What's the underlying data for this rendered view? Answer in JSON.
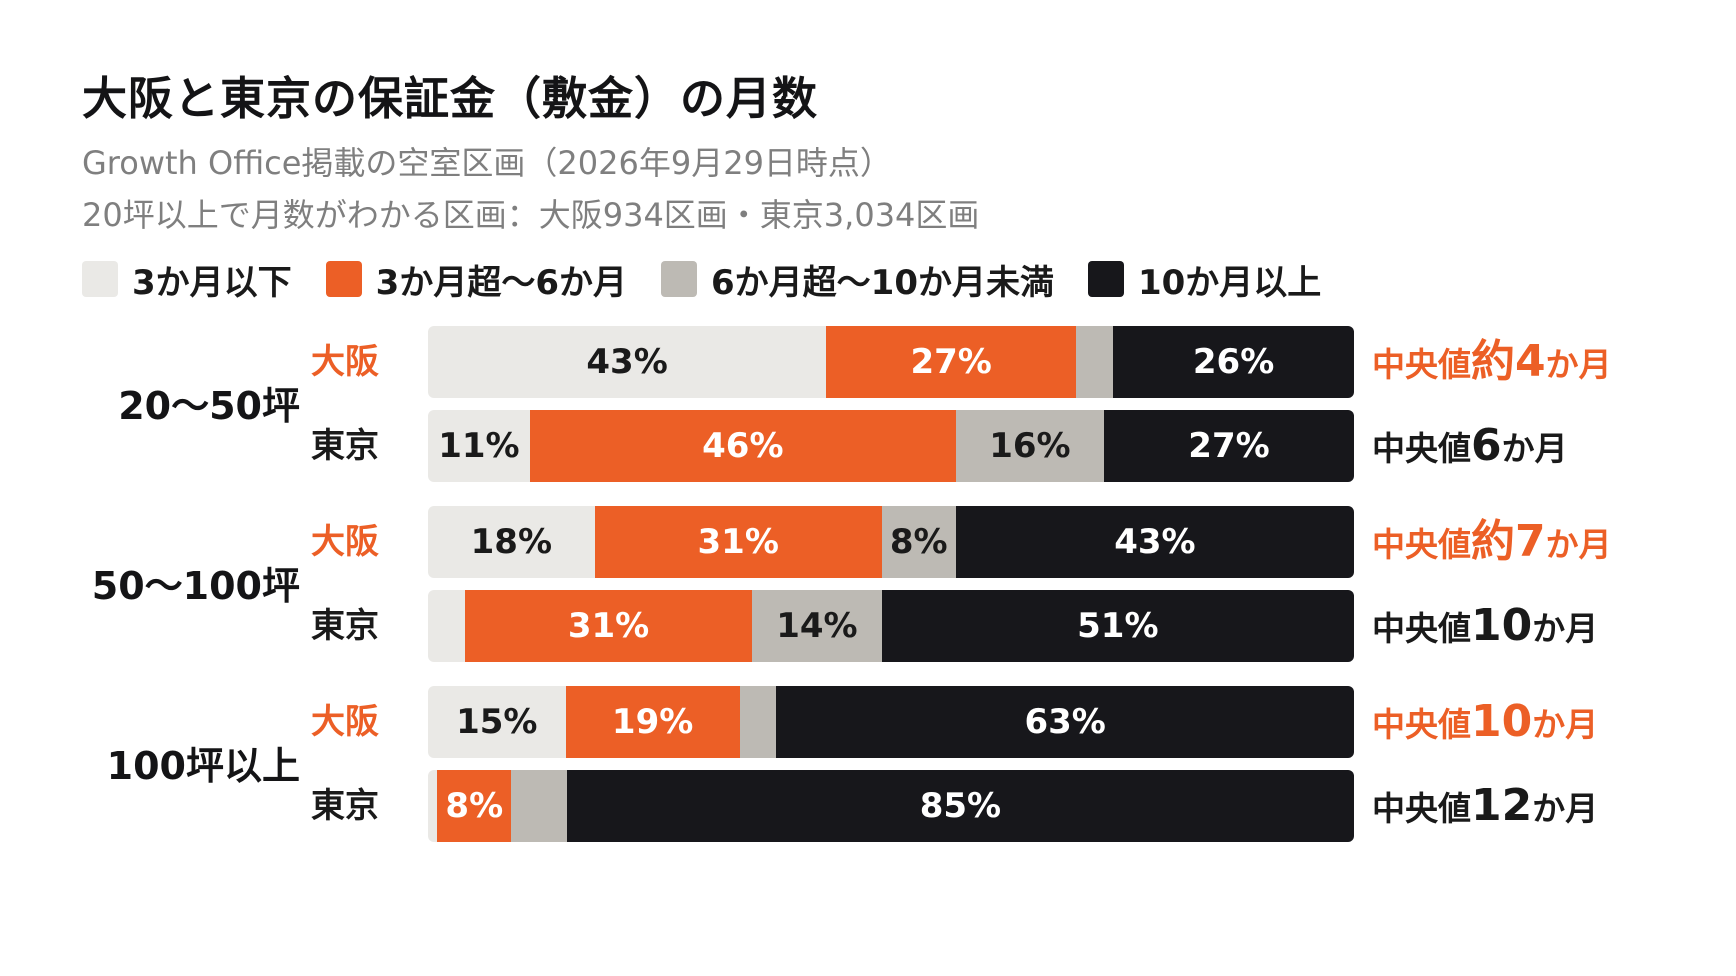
{
  "title": "大阪と東京の保証金（敷金）の月数",
  "subtitle_1": "Growth Office掲載の空室区画（2026年9月29日時点）",
  "subtitle_2": "20坪以上で月数がわかる区画：大阪934区画・東京3,034区画",
  "colors": {
    "le3": "#eae9e6",
    "3to6": "#ec5f26",
    "6to10": "#bdbab4",
    "ge10": "#17171b",
    "osaka_accent": "#ec5f26",
    "tokyo_text": "#1a1a1a"
  },
  "chart_data": {
    "type": "bar",
    "orientation": "horizontal",
    "stacked": true,
    "legend": "top-left",
    "categories_legend": [
      "3か月以下",
      "3か月超〜6か月",
      "6か月超〜10か月未満",
      "10か月以上"
    ],
    "groups": [
      {
        "label": "20〜50坪",
        "rows": [
          {
            "city": "大阪",
            "values": [
              43,
              27,
              4,
              26
            ],
            "labels": [
              "43%",
              "27%",
              "",
              "26%"
            ],
            "median_prefix": "中央値",
            "median_value": "約4",
            "median_unit": "か月"
          },
          {
            "city": "東京",
            "values": [
              11,
              46,
              16,
              27
            ],
            "labels": [
              "11%",
              "46%",
              "16%",
              "27%"
            ],
            "median_prefix": "中央値",
            "median_value": "6",
            "median_unit": "か月"
          }
        ]
      },
      {
        "label": "50〜100坪",
        "rows": [
          {
            "city": "大阪",
            "values": [
              18,
              31,
              8,
              43
            ],
            "labels": [
              "18%",
              "31%",
              "8%",
              "43%"
            ],
            "median_prefix": "中央値",
            "median_value": "約7",
            "median_unit": "か月"
          },
          {
            "city": "東京",
            "values": [
              4,
              31,
              14,
              51
            ],
            "labels": [
              "",
              "31%",
              "14%",
              "51%"
            ],
            "median_prefix": "中央値",
            "median_value": "10",
            "median_unit": "か月"
          }
        ]
      },
      {
        "label": "100坪以上",
        "rows": [
          {
            "city": "大阪",
            "values": [
              15,
              19,
              4,
              63
            ],
            "labels": [
              "15%",
              "19%",
              "",
              "63%"
            ],
            "median_prefix": "中央値",
            "median_value": "10",
            "median_unit": "か月"
          },
          {
            "city": "東京",
            "values": [
              1,
              8,
              6,
              85
            ],
            "labels": [
              "",
              "8%",
              "",
              "85%"
            ],
            "median_prefix": "中央値",
            "median_value": "12",
            "median_unit": "か月"
          }
        ]
      }
    ]
  }
}
